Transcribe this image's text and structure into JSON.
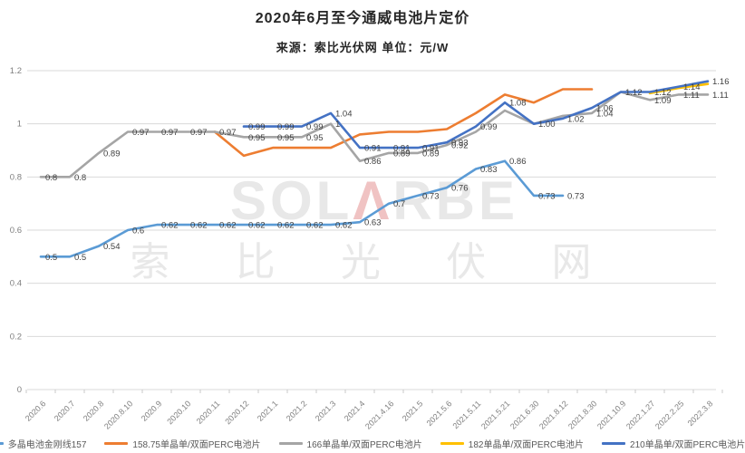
{
  "chart_data": {
    "type": "line",
    "title": "2020年6月至今通威电池片定价",
    "subtitle": "来源：索比光伏网 单位：元/W",
    "unit": "元/W",
    "source": "索比光伏网",
    "legend_position": "bottom",
    "grid": true,
    "ylim": [
      0,
      1.2
    ],
    "yticks": [
      "0",
      "0.2",
      "0.4",
      "0.6",
      "0.8",
      "1",
      "1.2"
    ],
    "categories": [
      "2020.6",
      "2020.7",
      "2020.8",
      "2020.8.10",
      "2020.9",
      "2020.10",
      "2020.11",
      "2020.12",
      "2021.1",
      "2021.2",
      "2021.3",
      "2021.4",
      "2021.4.16",
      "2021.5",
      "2021.5.6",
      "2021.5.11",
      "2021.5.21",
      "2021.6.30",
      "2021.8.12",
      "2021.8.30",
      "2021.10.9",
      "2022.1.27",
      "2022.2.25",
      "2022.3.8"
    ],
    "watermark": {
      "line1_pre": "SOL",
      "line1_a": "Λ",
      "line1_post": "RBE",
      "line2": "索 比 光 伏 网",
      "gray": "#E8E8E8",
      "red": "#F0C3C3"
    },
    "series": [
      {
        "name": "多晶电池金刚线157",
        "color": "#5B9BD5",
        "values": [
          0.5,
          0.5,
          0.54,
          0.6,
          0.62,
          0.62,
          0.62,
          0.62,
          0.62,
          0.62,
          0.62,
          0.63,
          0.7,
          0.73,
          0.76,
          0.83,
          0.86,
          0.73,
          0.73,
          null,
          null,
          null,
          null,
          null
        ],
        "labels": [
          "0.5",
          "0.5",
          "0.54",
          "0.6",
          "0.62",
          "0.62",
          "0.62",
          "0.62",
          "0.62",
          "0.62",
          "0.62",
          "0.63",
          "0.7",
          "0.73",
          "0.76",
          "0.83",
          "0.86",
          "0.73",
          "0.73",
          null,
          null,
          null,
          null,
          null
        ]
      },
      {
        "name": "158.75单晶单/双面PERC电池片",
        "color": "#ED7D31",
        "values": [
          null,
          null,
          null,
          null,
          null,
          null,
          0.97,
          0.88,
          0.91,
          0.91,
          0.91,
          0.96,
          0.97,
          0.97,
          0.98,
          1.04,
          1.11,
          1.08,
          1.13,
          1.13,
          null,
          null,
          null,
          null
        ],
        "labels": [
          null,
          null,
          null,
          null,
          null,
          null,
          null,
          null,
          null,
          null,
          null,
          null,
          null,
          null,
          null,
          null,
          null,
          null,
          null,
          null,
          null,
          null,
          null,
          null
        ]
      },
      {
        "name": "166单晶单/双面PERC电池片",
        "color": "#A5A5A5",
        "values": [
          0.8,
          0.8,
          0.89,
          0.97,
          0.97,
          0.97,
          0.97,
          0.95,
          0.95,
          0.95,
          1,
          0.86,
          0.89,
          0.89,
          0.92,
          0.97,
          1.05,
          1.0,
          1.03,
          1.04,
          1.12,
          1.09,
          1.11,
          1.11
        ],
        "labels": [
          "0.8",
          "0.8",
          "0.89",
          "0.97",
          "0.97",
          "0.97",
          "0.97",
          "0.95",
          "0.95",
          "0.95",
          "1",
          "0.86",
          "0.89",
          "0.89",
          "0.92",
          null,
          null,
          null,
          null,
          "1.04",
          null,
          "1.09",
          "1.11",
          "1.11"
        ]
      },
      {
        "name": "182单晶单/双面PERC电池片",
        "color": "#FFC000",
        "values": [
          null,
          null,
          null,
          null,
          null,
          null,
          null,
          null,
          null,
          null,
          null,
          null,
          null,
          null,
          null,
          null,
          null,
          null,
          null,
          null,
          null,
          1.115,
          1.135,
          1.15
        ],
        "labels": [
          null,
          null,
          null,
          null,
          null,
          null,
          null,
          null,
          null,
          null,
          null,
          null,
          null,
          null,
          null,
          null,
          null,
          null,
          null,
          null,
          null,
          null,
          null,
          null
        ]
      },
      {
        "name": "210单晶单/双面PERC电池片",
        "color": "#4472C4",
        "values": [
          null,
          null,
          null,
          null,
          null,
          null,
          null,
          0.99,
          0.99,
          0.99,
          1.04,
          0.91,
          0.91,
          0.91,
          0.93,
          0.99,
          1.08,
          1.0,
          1.02,
          1.06,
          1.12,
          1.12,
          1.14,
          1.16
        ],
        "labels": [
          null,
          null,
          null,
          null,
          null,
          null,
          null,
          "0.99",
          "0.99",
          "0.99",
          "1.04",
          "0.91",
          "0.91",
          "0.91",
          "0.93",
          "0.99",
          "1.08",
          "1.00",
          "1.02",
          "1.06",
          "1.12",
          "1.12",
          "1.14",
          "1.16"
        ]
      }
    ]
  }
}
